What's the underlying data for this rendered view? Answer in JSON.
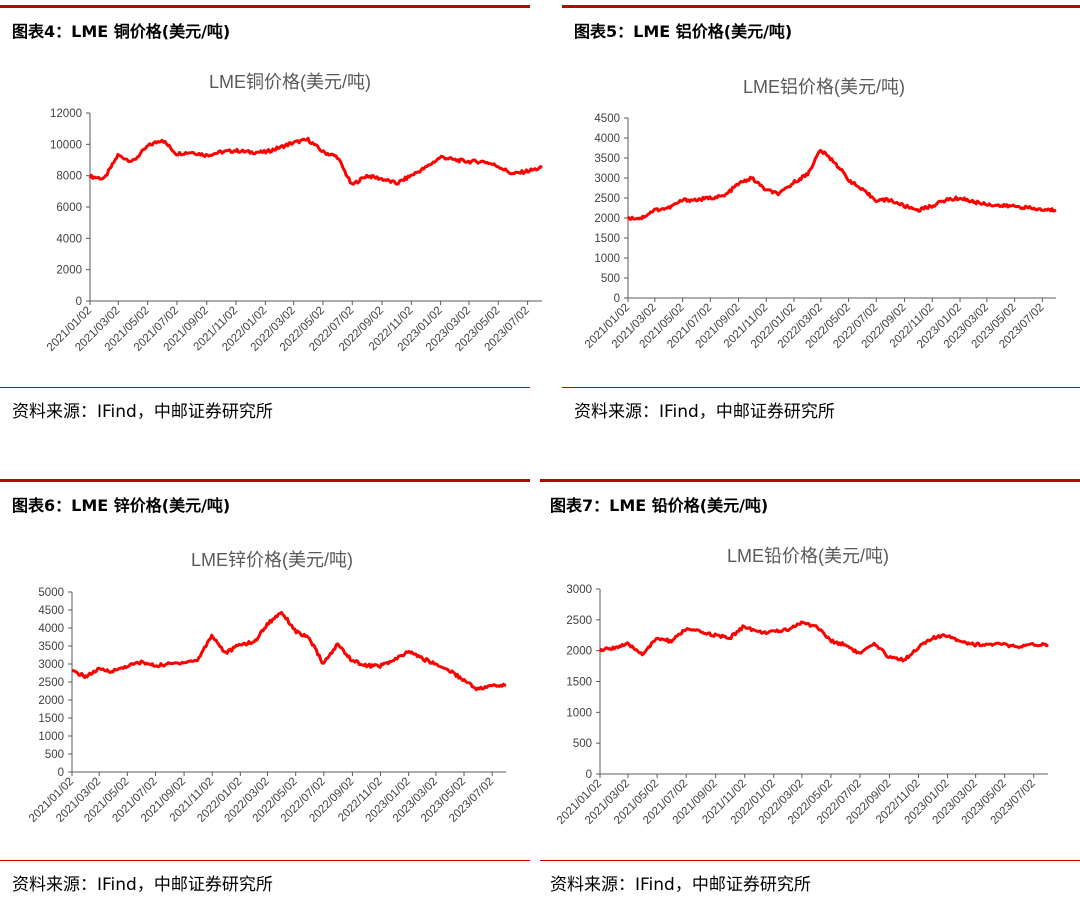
{
  "panels": [
    {
      "title": "图表4：LME 铜价格(美元/吨)",
      "source": "资料来源：IFind，中邮证券研究所",
      "chart_data": {
        "type": "line",
        "title": "LME铜价格(美元/吨)",
        "xlabel": "",
        "ylabel": "",
        "ylim": [
          0,
          12000
        ],
        "yticks": [
          0,
          2000,
          4000,
          6000,
          8000,
          10000,
          12000
        ],
        "xticks": [
          "2021/01/02",
          "2021/03/02",
          "2021/05/02",
          "2021/07/02",
          "2021/09/02",
          "2021/11/02",
          "2022/01/02",
          "2022/03/02",
          "2022/05/02",
          "2022/07/02",
          "2022/09/02",
          "2022/11/02",
          "2023/01/02",
          "2023/03/02",
          "2023/05/02",
          "2023/07/02"
        ],
        "color": "#ff0000",
        "x": [
          "2021/01/02",
          "2021/02/01",
          "2021/03/01",
          "2021/04/01",
          "2021/05/03",
          "2021/06/01",
          "2021/07/01",
          "2021/08/02",
          "2021/09/01",
          "2021/10/01",
          "2021/11/01",
          "2021/12/01",
          "2022/01/03",
          "2022/02/01",
          "2022/03/01",
          "2022/04/01",
          "2022/05/03",
          "2022/06/01",
          "2022/07/01",
          "2022/08/01",
          "2022/09/01",
          "2022/10/03",
          "2022/11/01",
          "2022/12/01",
          "2023/01/03",
          "2023/02/01",
          "2023/03/01",
          "2023/04/03",
          "2023/05/02",
          "2023/06/01",
          "2023/07/03",
          "2023/08/01"
        ],
        "values": [
          7950,
          7800,
          9300,
          8900,
          9900,
          10300,
          9400,
          9500,
          9300,
          9500,
          9600,
          9500,
          9500,
          9800,
          10100,
          10300,
          9500,
          9200,
          7400,
          8000,
          7800,
          7500,
          8000,
          8500,
          9200,
          9000,
          8900,
          8900,
          8600,
          8100,
          8300,
          8500
        ]
      }
    },
    {
      "title": "图表5：LME 铝价格(美元/吨)",
      "source": "资料来源：IFind，中邮证券研究所",
      "chart_data": {
        "type": "line",
        "title": "LME铝价格(美元/吨)",
        "xlabel": "",
        "ylabel": "",
        "ylim": [
          0,
          4500
        ],
        "yticks": [
          0,
          500,
          1000,
          1500,
          2000,
          2500,
          3000,
          3500,
          4000,
          4500
        ],
        "xticks": [
          "2021/01/02",
          "2021/03/02",
          "2021/05/02",
          "2021/07/02",
          "2021/09/02",
          "2021/11/02",
          "2022/01/02",
          "2022/03/02",
          "2022/05/02",
          "2022/07/02",
          "2022/09/02",
          "2022/11/02",
          "2023/01/02",
          "2023/03/02",
          "2023/05/02",
          "2023/07/02"
        ],
        "color": "#ff0000",
        "x": [
          "2021/01/02",
          "2021/02/01",
          "2021/03/01",
          "2021/04/01",
          "2021/05/03",
          "2021/06/01",
          "2021/07/01",
          "2021/08/02",
          "2021/09/01",
          "2021/10/01",
          "2021/11/01",
          "2021/12/01",
          "2022/01/03",
          "2022/02/01",
          "2022/03/01",
          "2022/04/01",
          "2022/05/03",
          "2022/06/01",
          "2022/07/01",
          "2022/08/01",
          "2022/09/01",
          "2022/10/03",
          "2022/11/01",
          "2022/12/01",
          "2023/01/03",
          "2023/02/01",
          "2023/03/01",
          "2023/04/03",
          "2023/05/02",
          "2023/06/01",
          "2023/07/03",
          "2023/08/01"
        ],
        "values": [
          2000,
          2000,
          2200,
          2250,
          2450,
          2450,
          2500,
          2550,
          2850,
          3000,
          2700,
          2600,
          2900,
          3100,
          3700,
          3400,
          2950,
          2700,
          2450,
          2450,
          2300,
          2200,
          2300,
          2450,
          2500,
          2400,
          2350,
          2300,
          2300,
          2250,
          2200,
          2200
        ]
      }
    },
    {
      "title": "图表6：LME 锌价格(美元/吨)",
      "source": "资料来源：IFind，中邮证券研究所",
      "chart_data": {
        "type": "line",
        "title": "LME锌价格(美元/吨)",
        "xlabel": "",
        "ylabel": "",
        "ylim": [
          0,
          5000
        ],
        "yticks": [
          0,
          500,
          1000,
          1500,
          2000,
          2500,
          3000,
          3500,
          4000,
          4500,
          5000
        ],
        "xticks": [
          "2021/01/02",
          "2021/03/02",
          "2021/05/02",
          "2021/07/02",
          "2021/09/02",
          "2021/11/02",
          "2022/01/02",
          "2022/03/02",
          "2022/05/02",
          "2022/07/02",
          "2022/09/02",
          "2022/11/02",
          "2023/01/02",
          "2023/03/02",
          "2023/05/02",
          "2023/07/02"
        ],
        "color": "#ff0000",
        "x": [
          "2021/01/02",
          "2021/02/01",
          "2021/03/01",
          "2021/04/01",
          "2021/05/03",
          "2021/06/01",
          "2021/07/01",
          "2021/08/02",
          "2021/09/01",
          "2021/10/01",
          "2021/11/01",
          "2021/12/01",
          "2022/01/03",
          "2022/02/01",
          "2022/03/01",
          "2022/04/01",
          "2022/05/03",
          "2022/06/01",
          "2022/07/01",
          "2022/08/01",
          "2022/09/01",
          "2022/10/03",
          "2022/11/01",
          "2022/12/01",
          "2023/01/03",
          "2023/02/01",
          "2023/03/01",
          "2023/04/03",
          "2023/05/02",
          "2023/06/01",
          "2023/07/03",
          "2023/08/01"
        ],
        "values": [
          2800,
          2650,
          2850,
          2800,
          2950,
          3050,
          2950,
          3000,
          3050,
          3100,
          3800,
          3300,
          3550,
          3600,
          4100,
          4450,
          3900,
          3700,
          3000,
          3550,
          3100,
          2950,
          2950,
          3100,
          3350,
          3150,
          3000,
          2800,
          2550,
          2300,
          2400,
          2400
        ]
      }
    },
    {
      "title": "图表7：LME 铅价格(美元/吨)",
      "source": "资料来源：IFind，中邮证券研究所",
      "chart_data": {
        "type": "line",
        "title": "LME铅价格(美元/吨)",
        "xlabel": "",
        "ylabel": "",
        "ylim": [
          0,
          3000
        ],
        "yticks": [
          0,
          500,
          1000,
          1500,
          2000,
          2500,
          3000
        ],
        "xticks": [
          "2021/01/02",
          "2021/03/02",
          "2021/05/02",
          "2021/07/02",
          "2021/09/02",
          "2021/11/02",
          "2022/01/02",
          "2022/03/02",
          "2022/05/02",
          "2022/07/02",
          "2022/09/02",
          "2022/11/02",
          "2023/01/02",
          "2023/03/02",
          "2023/05/02",
          "2023/07/02"
        ],
        "color": "#ff0000",
        "x": [
          "2021/01/02",
          "2021/02/01",
          "2021/03/01",
          "2021/04/01",
          "2021/05/03",
          "2021/06/01",
          "2021/07/01",
          "2021/08/02",
          "2021/09/01",
          "2021/10/01",
          "2021/11/01",
          "2021/12/01",
          "2022/01/03",
          "2022/02/01",
          "2022/03/01",
          "2022/04/01",
          "2022/05/03",
          "2022/06/01",
          "2022/07/01",
          "2022/08/01",
          "2022/09/01",
          "2022/10/03",
          "2022/11/01",
          "2022/12/01",
          "2023/01/03",
          "2023/02/01",
          "2023/03/01",
          "2023/04/03",
          "2023/05/02",
          "2023/06/01",
          "2023/07/03",
          "2023/08/01"
        ],
        "values": [
          2000,
          2050,
          2100,
          1950,
          2200,
          2150,
          2350,
          2300,
          2250,
          2200,
          2400,
          2300,
          2300,
          2350,
          2450,
          2400,
          2150,
          2100,
          1950,
          2100,
          1900,
          1850,
          2050,
          2200,
          2250,
          2150,
          2100,
          2100,
          2100,
          2050,
          2100,
          2100
        ]
      }
    }
  ]
}
